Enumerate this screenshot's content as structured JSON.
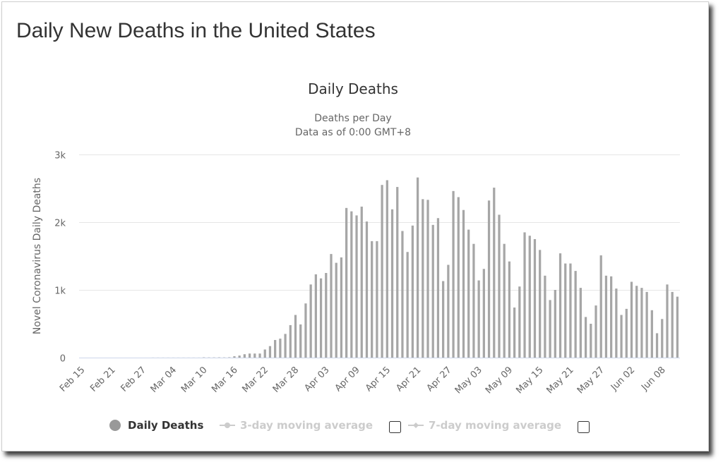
{
  "page": {
    "title": "Daily New Deaths in the United States"
  },
  "colors": {
    "bar": "#a6a6a6",
    "grid": "#e6e6e6",
    "text": "#333333",
    "axis_text": "#666666",
    "inactive": "#cccccc",
    "legend_dot": "#999999"
  },
  "chart_data": {
    "type": "bar",
    "title": "Daily Deaths",
    "subtitle": [
      "Deaths per Day",
      "Data as of 0:00 GMT+8"
    ],
    "ylabel": "Novel Coronavirus Daily Deaths",
    "xlabel": "",
    "ylim": [
      0,
      3000
    ],
    "y_ticks": [
      0,
      1000,
      2000,
      3000
    ],
    "y_tick_labels": [
      "0",
      "1k",
      "2k",
      "3k"
    ],
    "x_tick_labels": [
      "Feb 15",
      "Feb 21",
      "Feb 27",
      "Mar 04",
      "Mar 10",
      "Mar 16",
      "Mar 22",
      "Mar 28",
      "Apr 03",
      "Apr 09",
      "Apr 15",
      "Apr 21",
      "Apr 27",
      "May 03",
      "May 09",
      "May 15",
      "May 21",
      "May 27",
      "Jun 02",
      "Jun 08"
    ],
    "grid": true,
    "legend_position": "bottom",
    "categories": [
      "Feb 15",
      "Feb 16",
      "Feb 17",
      "Feb 18",
      "Feb 19",
      "Feb 20",
      "Feb 21",
      "Feb 22",
      "Feb 23",
      "Feb 24",
      "Feb 25",
      "Feb 26",
      "Feb 27",
      "Feb 28",
      "Feb 29",
      "Mar 01",
      "Mar 02",
      "Mar 03",
      "Mar 04",
      "Mar 05",
      "Mar 06",
      "Mar 07",
      "Mar 08",
      "Mar 09",
      "Mar 10",
      "Mar 11",
      "Mar 12",
      "Mar 13",
      "Mar 14",
      "Mar 15",
      "Mar 16",
      "Mar 17",
      "Mar 18",
      "Mar 19",
      "Mar 20",
      "Mar 21",
      "Mar 22",
      "Mar 23",
      "Mar 24",
      "Mar 25",
      "Mar 26",
      "Mar 27",
      "Mar 28",
      "Mar 29",
      "Mar 30",
      "Mar 31",
      "Apr 01",
      "Apr 02",
      "Apr 03",
      "Apr 04",
      "Apr 05",
      "Apr 06",
      "Apr 07",
      "Apr 08",
      "Apr 09",
      "Apr 10",
      "Apr 11",
      "Apr 12",
      "Apr 13",
      "Apr 14",
      "Apr 15",
      "Apr 16",
      "Apr 17",
      "Apr 18",
      "Apr 19",
      "Apr 20",
      "Apr 21",
      "Apr 22",
      "Apr 23",
      "Apr 24",
      "Apr 25",
      "Apr 26",
      "Apr 27",
      "Apr 28",
      "Apr 29",
      "Apr 30",
      "May 01",
      "May 02",
      "May 03",
      "May 04",
      "May 05",
      "May 06",
      "May 07",
      "May 08",
      "May 09",
      "May 10",
      "May 11",
      "May 12",
      "May 13",
      "May 14",
      "May 15",
      "May 16",
      "May 17",
      "May 18",
      "May 19",
      "May 20",
      "May 21",
      "May 22",
      "May 23",
      "May 24",
      "May 25",
      "May 26",
      "May 27",
      "May 28",
      "May 29",
      "May 30",
      "May 31",
      "Jun 01",
      "Jun 02",
      "Jun 03",
      "Jun 04",
      "Jun 05",
      "Jun 06",
      "Jun 07",
      "Jun 08",
      "Jun 09",
      "Jun 10",
      "Jun 11"
    ],
    "series": [
      {
        "name": "Daily Deaths",
        "values": [
          0,
          0,
          0,
          0,
          0,
          0,
          0,
          0,
          0,
          0,
          0,
          0,
          0,
          0,
          1,
          1,
          1,
          1,
          1,
          1,
          1,
          1,
          1,
          1,
          4,
          3,
          3,
          4,
          3,
          5,
          20,
          30,
          50,
          60,
          60,
          60,
          120,
          170,
          260,
          280,
          350,
          480,
          630,
          490,
          800,
          1080,
          1230,
          1170,
          1250,
          1530,
          1400,
          1480,
          2210,
          2160,
          2100,
          2230,
          2010,
          1720,
          1720,
          2550,
          2620,
          2190,
          2520,
          1870,
          1560,
          1950,
          2660,
          2340,
          2330,
          1960,
          2060,
          1130,
          1370,
          2460,
          2370,
          2180,
          1890,
          1680,
          1140,
          1310,
          2320,
          2510,
          2110,
          1680,
          1420,
          740,
          1050,
          1850,
          1800,
          1750,
          1590,
          1210,
          850,
          1000,
          1540,
          1390,
          1390,
          1280,
          1030,
          600,
          500,
          770,
          1510,
          1210,
          1200,
          1020,
          630,
          720,
          1120,
          1060,
          1030,
          970,
          700,
          360,
          570,
          1080,
          970,
          900
        ]
      }
    ],
    "legend": [
      {
        "label": "Daily Deaths",
        "active": true
      },
      {
        "label": "3-day moving average",
        "active": false
      },
      {
        "label": "7-day moving average",
        "active": false
      }
    ]
  }
}
